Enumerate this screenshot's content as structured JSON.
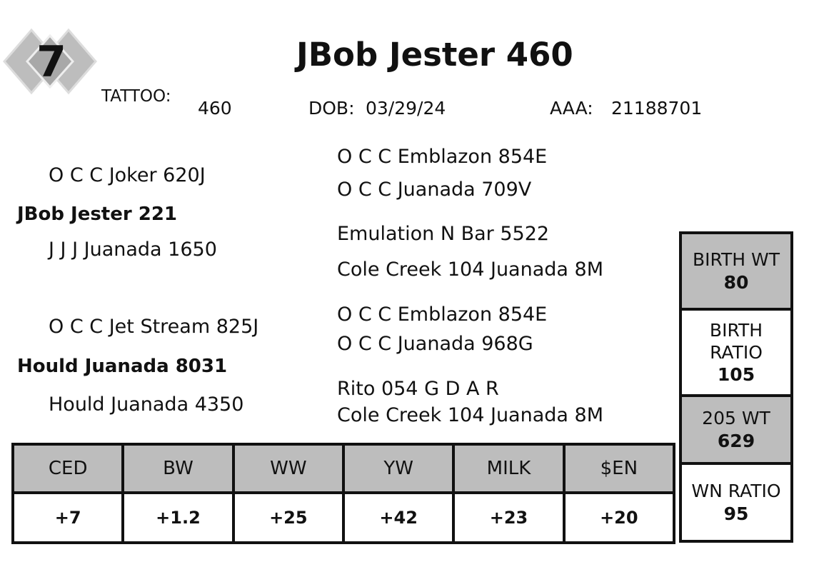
{
  "header": {
    "lot": 7,
    "name": "JBob Jester 460",
    "tattoo_label": "TATTOO:",
    "tattoo": 460,
    "dob_label": "DOB:",
    "dob": "03/29/24",
    "aaa_label": "AAA:",
    "aaa": 21188701
  },
  "pedigree": {
    "sire": {
      "name": "JBob Jester 221",
      "sire": {
        "name": "O C C Joker 620J",
        "sire": "O C C Emblazon 854E",
        "dam": "O C C Juanada 709V"
      },
      "dam": {
        "name": "J J J Juanada 1650",
        "sire": "Emulation N Bar 5522",
        "dam": "Cole Creek 104 Juanada 8M"
      }
    },
    "dam": {
      "name": "Hould Juanada 8031",
      "sire": {
        "name": "O C C Jet Stream 825J",
        "sire": "O C C Emblazon 854E",
        "dam": "O C C Juanada 968G"
      },
      "dam": {
        "name": "Hould Juanada 4350",
        "sire": "Rito 054 G D A R",
        "dam": "Cole Creek 104 Juanada 8M"
      }
    }
  },
  "epds": {
    "headers": [
      "CED",
      "BW",
      "WW",
      "YW",
      "MILK",
      "$EN"
    ],
    "values": [
      "+7",
      "+1.2",
      "+25",
      "+42",
      "+23",
      "+20"
    ]
  },
  "performance": [
    {
      "label": "BIRTH WT",
      "value": 80
    },
    {
      "label": "BIRTH RATIO",
      "value": 105
    },
    {
      "label": "205 WT",
      "value": 629
    },
    {
      "label": "WN RATIO",
      "value": 95
    }
  ]
}
